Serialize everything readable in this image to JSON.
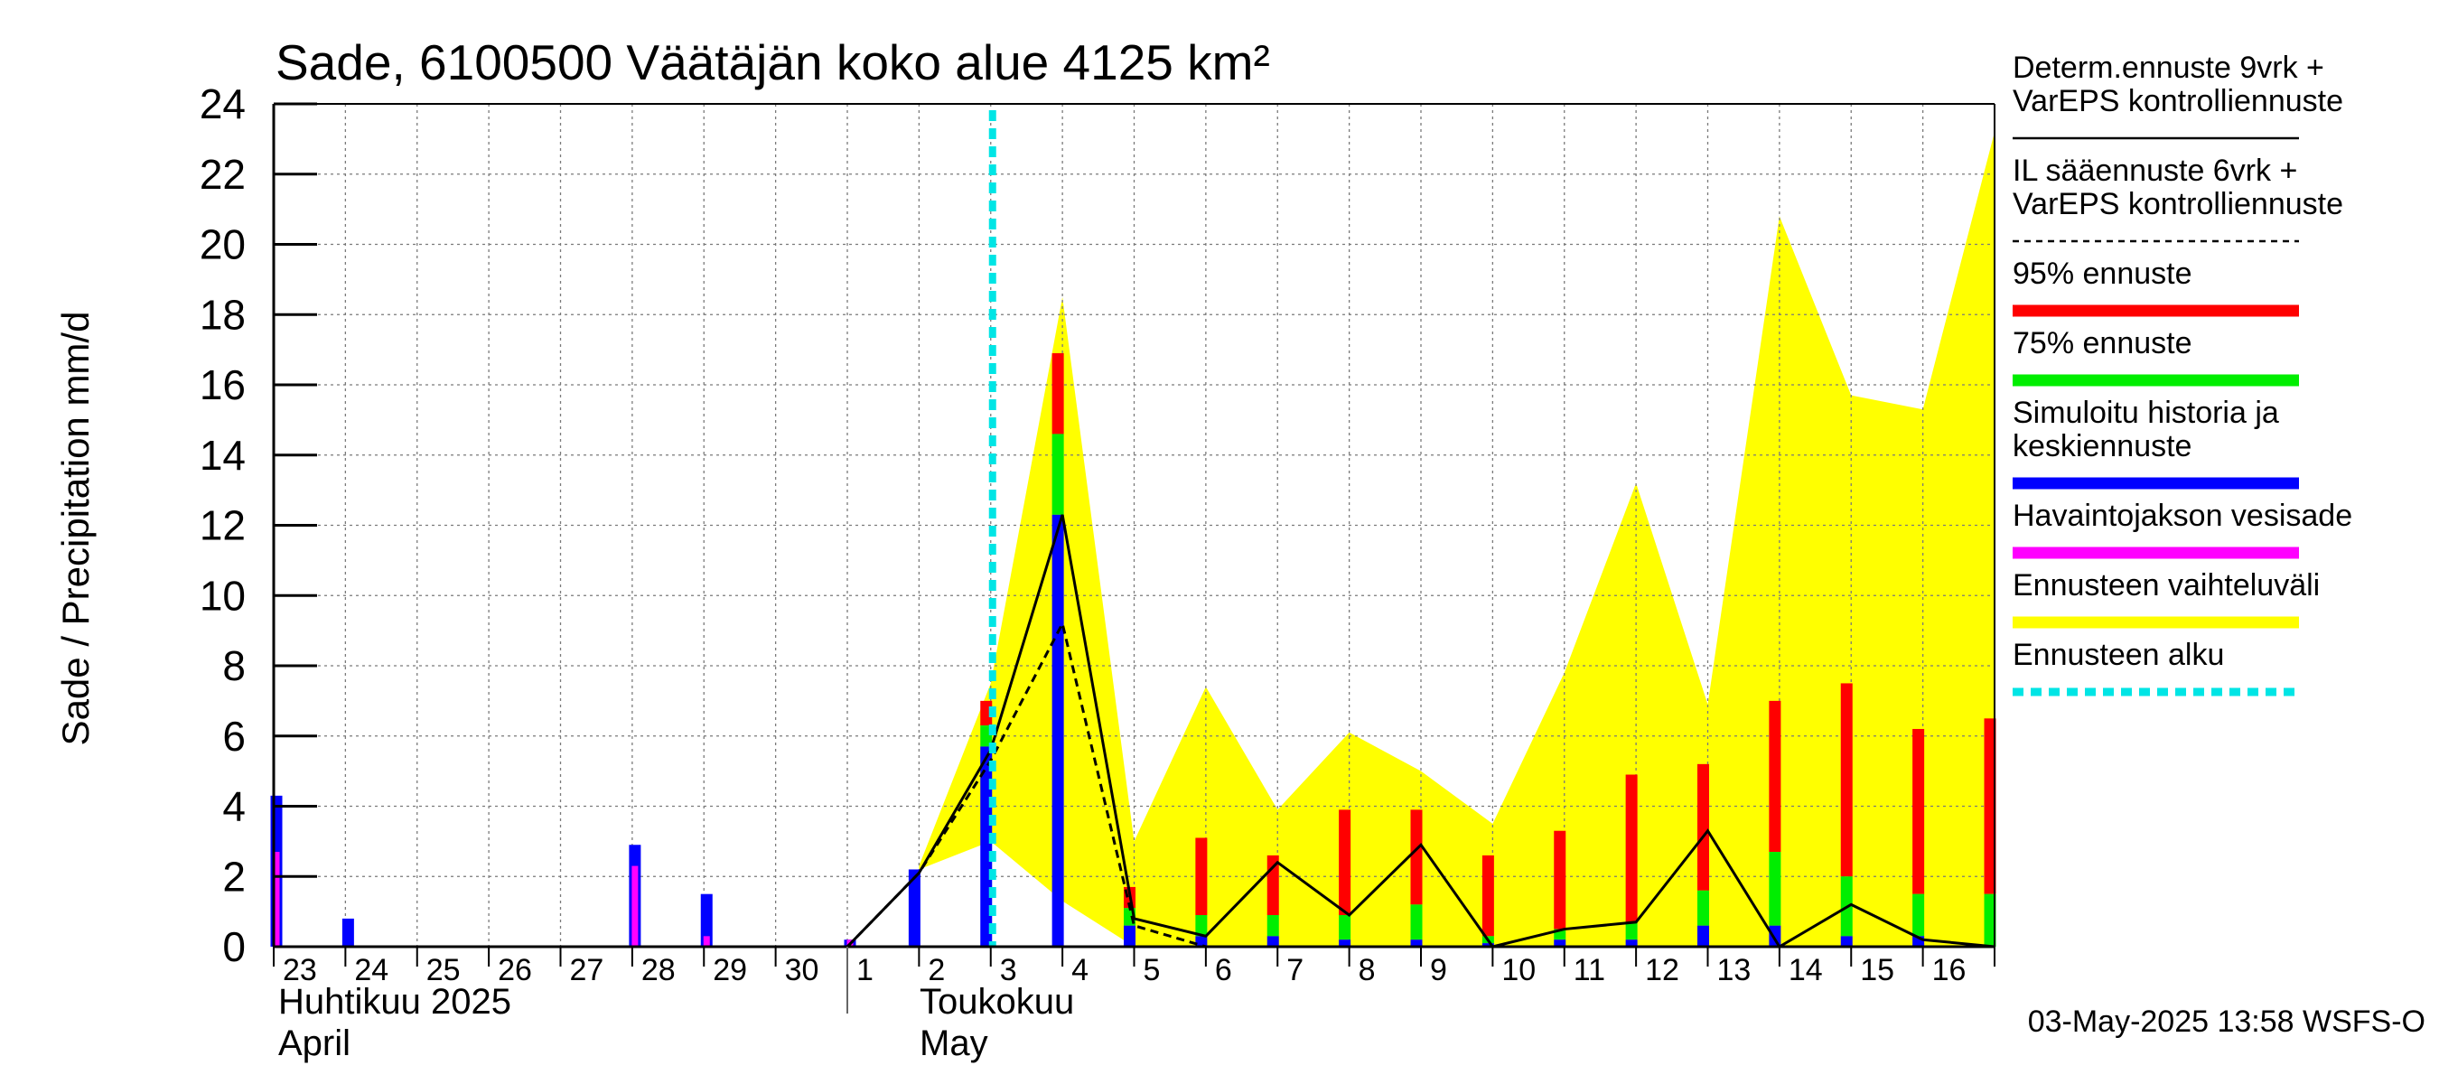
{
  "chart_data": {
    "type": "bar",
    "title": "Sade, 6100500 Väätäjän koko alue 4125 km²",
    "ylabel": "Sade / Precipitation   mm/d",
    "ylim": [
      0,
      24
    ],
    "yticks": [
      "0",
      "2",
      "4",
      "6",
      "8",
      "10",
      "12",
      "14",
      "16",
      "18",
      "20",
      "22",
      "24"
    ],
    "grid": true,
    "legend_position": "right",
    "day_labels": [
      "23",
      "24",
      "25",
      "26",
      "27",
      "28",
      "29",
      "30",
      "1",
      "2",
      "3",
      "4",
      "5",
      "6",
      "7",
      "8",
      "9",
      "10",
      "11",
      "12",
      "13",
      "14",
      "15",
      "16"
    ],
    "month_labels": [
      {
        "line1": "Huhtikuu  2025",
        "line2": "April"
      },
      {
        "line1": "Toukokuu",
        "line2": "May"
      }
    ],
    "forecast_start_day": 10,
    "history": {
      "observed_precipitation": [
        2.7,
        0,
        0,
        0,
        0,
        2.3,
        0.3,
        0,
        0.2
      ],
      "simulated_history": [
        4.3,
        0.8,
        0,
        0,
        0,
        2.9,
        1.5,
        0,
        0.2
      ]
    },
    "forecast": {
      "days": [
        9,
        10,
        11,
        12,
        13,
        14,
        15,
        16,
        17,
        18,
        19,
        20,
        21,
        22,
        23,
        24
      ],
      "p95": [
        2.2,
        7.0,
        16.9,
        1.7,
        3.1,
        2.6,
        3.9,
        3.9,
        2.6,
        3.3,
        4.9,
        5.2,
        7.0,
        7.5,
        6.2,
        6.5
      ],
      "p75": [
        2.2,
        6.3,
        14.6,
        1.1,
        0.9,
        0.9,
        0.9,
        1.2,
        0.3,
        0.5,
        0.7,
        1.6,
        2.7,
        2.0,
        1.5,
        1.5
      ],
      "median": [
        2.2,
        5.7,
        12.3,
        0.6,
        0.3,
        0.3,
        0.2,
        0.2,
        0.1,
        0.2,
        0.2,
        0.6,
        0.6,
        0.3,
        0.3,
        0
      ]
    },
    "ensemble_range": {
      "x": [
        9,
        10,
        11,
        12,
        13,
        14,
        15,
        16,
        17,
        18,
        19,
        20,
        21,
        22,
        23,
        24
      ],
      "upper": [
        2.3,
        7.5,
        18.5,
        3.0,
        7.4,
        3.9,
        6.1,
        5.0,
        3.5,
        7.8,
        13.2,
        6.9,
        20.8,
        15.7,
        15.3,
        23.2
      ],
      "lower": [
        2.2,
        3.0,
        1.3,
        0,
        0,
        0,
        0,
        0,
        0,
        0,
        0,
        0,
        0,
        0,
        0,
        0
      ]
    },
    "deterministic_forecast": {
      "x": [
        8,
        9,
        10,
        11,
        12,
        13,
        14,
        15,
        16,
        17,
        18,
        19,
        20,
        21,
        22,
        23,
        24
      ],
      "y": [
        0,
        2.1,
        5.6,
        12.3,
        0.8,
        0.3,
        2.4,
        0.9,
        2.9,
        0,
        0.5,
        0.7,
        3.3,
        0,
        1.2,
        0.2,
        0
      ]
    },
    "il_forecast": {
      "x": [
        8,
        9,
        10,
        11,
        12,
        13,
        14,
        15,
        16,
        17,
        18,
        19,
        20,
        21,
        22,
        23,
        24
      ],
      "y": [
        0,
        2.1,
        5.3,
        9.2,
        0.6,
        0,
        0,
        0,
        0,
        0,
        0,
        0,
        0,
        0,
        0,
        0,
        0
      ]
    },
    "legend": [
      {
        "kind": "solid",
        "color": "#000000",
        "lines": [
          "Determ.ennuste 9vrk +",
          "VarEPS kontrolliennuste"
        ]
      },
      {
        "kind": "dashed",
        "color": "#000000",
        "lines": [
          "IL sääennuste 6vrk  +",
          "  VarEPS kontrolliennuste"
        ]
      },
      {
        "kind": "bar",
        "color": "#ff0000",
        "lines": [
          "95% ennuste"
        ]
      },
      {
        "kind": "bar",
        "color": "#00ee00",
        "lines": [
          "75% ennuste"
        ]
      },
      {
        "kind": "bar",
        "color": "#0000ff",
        "lines": [
          "Simuloitu historia ja",
          "keskiennuste"
        ]
      },
      {
        "kind": "bar",
        "color": "#ff00ff",
        "lines": [
          "Havaintojakson vesisade"
        ]
      },
      {
        "kind": "bar",
        "color": "#ffff00",
        "lines": [
          "Ennusteen vaihteluväli"
        ]
      },
      {
        "kind": "dotted",
        "color": "#00e5e5",
        "lines": [
          "Ennusteen alku"
        ]
      }
    ],
    "colors": {
      "p95": "#ff0000",
      "p75": "#00ee00",
      "median": "#0000ff",
      "observed": "#ff00ff",
      "range": "#ffff00",
      "forecast_start": "#00e5e5"
    }
  },
  "footer": {
    "timestamp": "03-May-2025 13:58 WSFS-O"
  }
}
